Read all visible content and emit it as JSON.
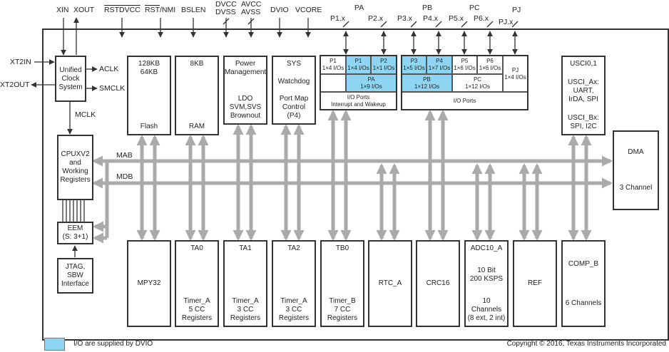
{
  "signals": {
    "xin": "XIN",
    "xout": "XOUT",
    "rstdvcc": "RSTDVCC",
    "rst": "RST",
    "nmi": "/NMI",
    "bslen": "BSLEN",
    "dvcc": "DVCC",
    "dvss": "DVSS",
    "avcc": "AVCC",
    "avss": "AVSS",
    "dvio": "DVIO",
    "vcore": "VCORE",
    "xt2in": "XT2IN",
    "xt2out": "XT2OUT",
    "aclk": "ACLK",
    "smclk": "SMCLK",
    "mclk": "MCLK",
    "mab": "MAB",
    "mdb": "MDB",
    "pa": "PA",
    "pb": "PB",
    "pc": "PC",
    "pj": "PJ",
    "p1x": "P1.x",
    "p2x": "P2.x",
    "p3x": "P3.x",
    "p4x": "P4.x",
    "p5x": "P5.x",
    "p6x": "P6.x",
    "pjx": "PJ.x"
  },
  "blocks": [
    {
      "id": "clock",
      "groups": [
        [
          "Unified",
          "Clock",
          "System"
        ]
      ]
    },
    {
      "id": "flash",
      "groups": [
        [
          "128KB",
          "64KB"
        ],
        [
          "Flash"
        ]
      ]
    },
    {
      "id": "ram",
      "groups": [
        [
          "8KB"
        ],
        [
          "RAM"
        ]
      ]
    },
    {
      "id": "power",
      "groups": [
        [
          "Power",
          "Management"
        ],
        [
          "LDO",
          "SVM,SVS",
          "Brownout"
        ]
      ]
    },
    {
      "id": "sys",
      "groups": [
        [
          "SYS"
        ],
        [
          "Watchdog"
        ],
        [
          "Port Map",
          "Control",
          "(P4)"
        ]
      ]
    },
    {
      "id": "usci",
      "groups": [
        [
          "USCI0,1"
        ],
        [
          "USCI_Ax:",
          "UART,",
          "IrDA, SPI"
        ],
        [
          "USCI_Bx:",
          "SPI, I2C"
        ]
      ]
    },
    {
      "id": "dma",
      "groups": [
        [
          "DMA"
        ],
        [
          "3 Channel"
        ]
      ]
    },
    {
      "id": "cpu",
      "groups": [
        [
          "CPUXV2",
          "and",
          "Working",
          "Registers"
        ]
      ]
    },
    {
      "id": "eem",
      "groups": [
        [
          "EEM",
          "(S: 3+1)"
        ]
      ]
    },
    {
      "id": "jtag",
      "groups": [
        [
          "JTAG,",
          "SBW",
          "Interface"
        ]
      ]
    },
    {
      "id": "mpy32",
      "groups": [
        [
          "MPY32"
        ]
      ]
    },
    {
      "id": "ta0",
      "groups": [
        [
          "TA0"
        ],
        [
          "Timer_A",
          "5 CC",
          "Registers"
        ]
      ]
    },
    {
      "id": "ta1",
      "groups": [
        [
          "TA1"
        ],
        [
          "Timer_A",
          "3 CC",
          "Registers"
        ]
      ]
    },
    {
      "id": "ta2",
      "groups": [
        [
          "TA2"
        ],
        [
          "Timer_A",
          "3 CC",
          "Registers"
        ]
      ]
    },
    {
      "id": "tb0",
      "groups": [
        [
          "TB0"
        ],
        [
          "Timer_B",
          "7 CC",
          "Registers"
        ]
      ]
    },
    {
      "id": "rtc",
      "groups": [
        [
          "RTC_A"
        ]
      ]
    },
    {
      "id": "crc",
      "groups": [
        [
          "CRC16"
        ]
      ]
    },
    {
      "id": "adc",
      "groups": [
        [
          "ADC10_A"
        ],
        [
          "10 Bit",
          "200 KSPS"
        ],
        [
          "10 Channels",
          "(8 ext, 2 int)"
        ]
      ]
    },
    {
      "id": "ref",
      "groups": [
        [
          "REF"
        ]
      ]
    },
    {
      "id": "comp",
      "groups": [
        [
          "COMP_B"
        ],
        [
          "6 Channels"
        ]
      ]
    }
  ],
  "ports": [
    {
      "id": "p1a",
      "lines": [
        "P1",
        "1×4 I/Os"
      ],
      "dvio": false
    },
    {
      "id": "p1b",
      "lines": [
        "P1",
        "1×4 I/Os"
      ],
      "dvio": true
    },
    {
      "id": "p2",
      "lines": [
        "P2",
        "1×1 I/Os"
      ],
      "dvio": true
    },
    {
      "id": "paempty",
      "lines": [],
      "dvio": false
    },
    {
      "id": "pa",
      "lines": [
        "PA",
        "1×9 I/Os"
      ],
      "dvio": true
    },
    {
      "id": "paports",
      "lines": [
        "I/O Ports",
        "Interrupt and Wakeup"
      ],
      "dvio": false
    },
    {
      "id": "p3",
      "lines": [
        "P3",
        "1×5 I/Os"
      ],
      "dvio": true
    },
    {
      "id": "p4",
      "lines": [
        "P4",
        "1×7 I/Os"
      ],
      "dvio": true
    },
    {
      "id": "p5",
      "lines": [
        "P5",
        "1×6 I/Os"
      ],
      "dvio": false
    },
    {
      "id": "p6",
      "lines": [
        "P6",
        "1×6 I/Os"
      ],
      "dvio": false
    },
    {
      "id": "pj",
      "lines": [
        "PJ",
        "1×4 I/Os"
      ],
      "dvio": false
    },
    {
      "id": "pb",
      "lines": [
        "PB",
        "1×12 I/Os"
      ],
      "dvio": true
    },
    {
      "id": "pc",
      "lines": [
        "PC",
        "1×12 I/Os"
      ],
      "dvio": false
    },
    {
      "id": "ioports",
      "lines": [
        "I/O Ports"
      ],
      "dvio": false
    }
  ],
  "legend": {
    "text": "I/O are supplied by DVIO",
    "color": "#8dd5f2"
  },
  "copyright": "Copyright © 2016, Texas Instruments Incorporated",
  "colors": {
    "dvio_blue": "#8dd5f2",
    "bus_gray": "#aaaaaa",
    "line": "#333333"
  }
}
